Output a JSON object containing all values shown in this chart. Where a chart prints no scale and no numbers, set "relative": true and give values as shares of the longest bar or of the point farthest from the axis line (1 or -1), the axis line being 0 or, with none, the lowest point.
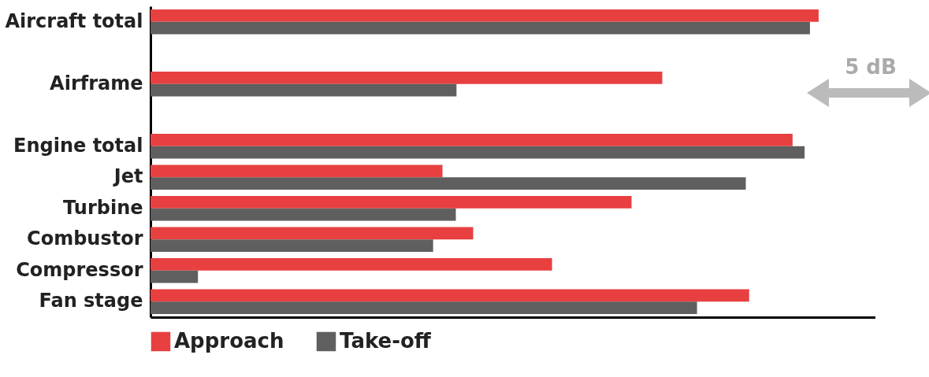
{
  "chart_data": {
    "type": "bar",
    "orientation": "horizontal",
    "relative": true,
    "legend": "bottom",
    "categories": [
      "Aircraft total",
      null,
      "Airframe",
      null,
      "Engine total",
      "Jet",
      "Turbine",
      "Combustor",
      "Compressor",
      "Fan stage"
    ],
    "series": [
      {
        "name": "Approach",
        "color": "#e84040",
        "values": [
          1,
          null,
          0.766,
          null,
          0.961,
          0.437,
          0.72,
          0.483,
          0.601,
          0.896
        ]
      },
      {
        "name": "Take-off",
        "color": "#5f5f5f",
        "values": [
          0.987,
          null,
          0.458,
          null,
          0.979,
          0.891,
          0.457,
          0.423,
          0.071,
          0.818
        ]
      }
    ],
    "annotations": [
      "5 dB"
    ]
  }
}
